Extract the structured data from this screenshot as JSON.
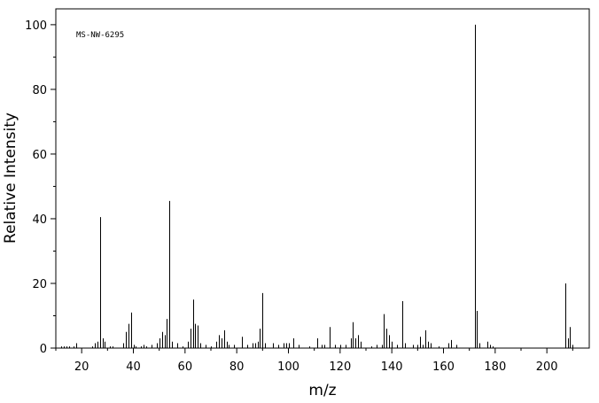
{
  "chart_data": {
    "type": "stem",
    "annotation": "MS-NW-6295",
    "xlabel": "m/z",
    "ylabel": "Relative Intensity",
    "color": "#000000",
    "xlim": [
      10,
      216.4
    ],
    "ylim": [
      0,
      104.9
    ],
    "xticks": [
      20,
      40,
      60,
      80,
      100,
      120,
      140,
      160,
      180,
      200
    ],
    "yticks": [
      0,
      20,
      40,
      60,
      80,
      100
    ],
    "xticks_minor": [
      10,
      30,
      50,
      70,
      90,
      110,
      130,
      150,
      170,
      190,
      210
    ],
    "yticks_minor": [
      10,
      30,
      50,
      70,
      90
    ],
    "x": [
      12,
      13,
      14,
      15,
      17,
      18,
      24,
      25,
      26,
      27,
      28,
      29,
      31,
      32,
      36,
      37,
      38,
      39,
      40,
      41,
      43,
      44,
      45,
      47,
      49,
      50,
      51,
      52,
      53,
      54,
      55,
      57,
      59,
      61,
      62,
      63,
      64,
      65,
      66,
      68,
      70,
      72,
      73,
      74,
      75,
      76,
      77,
      79,
      82,
      84,
      86,
      87,
      88,
      89,
      90,
      91,
      94,
      96,
      98,
      99,
      100,
      102,
      104,
      108,
      111,
      113,
      114,
      116,
      118,
      120,
      122,
      124,
      125,
      126,
      127,
      128,
      132,
      134,
      136,
      137,
      138,
      139,
      140,
      142,
      144,
      145,
      148,
      150,
      151,
      152,
      153,
      154,
      155,
      158,
      162,
      163,
      165,
      172,
      173,
      174,
      177,
      178,
      179,
      207,
      208,
      209,
      210
    ],
    "values": [
      0.5,
      0.5,
      0.5,
      0.5,
      0.5,
      1.5,
      0.5,
      1.5,
      2,
      40.5,
      3,
      2,
      0.5,
      0.5,
      1.5,
      5,
      7.5,
      11,
      1,
      0.5,
      0.5,
      1,
      0.5,
      1,
      1.5,
      3,
      5,
      4,
      9,
      45.5,
      2,
      1.5,
      0.5,
      2,
      6,
      15,
      7.5,
      7,
      1.5,
      1,
      0.5,
      2,
      4,
      3,
      5.5,
      2,
      1,
      1,
      3.5,
      1,
      1.5,
      1.5,
      2,
      6,
      17,
      1.5,
      1.5,
      1,
      1.5,
      1.5,
      1.5,
      3,
      1,
      0.5,
      3,
      1,
      1,
      6.5,
      1,
      1,
      1,
      3,
      8,
      3,
      4,
      2,
      0.5,
      1,
      1,
      10.5,
      6,
      4,
      2,
      1,
      14.5,
      1.5,
      1,
      1,
      3.5,
      1,
      5.5,
      2,
      1.5,
      0.5,
      1.5,
      2.5,
      1,
      100,
      11.5,
      1.5,
      2,
      1,
      0.5,
      20,
      3,
      6.5,
      1
    ]
  }
}
